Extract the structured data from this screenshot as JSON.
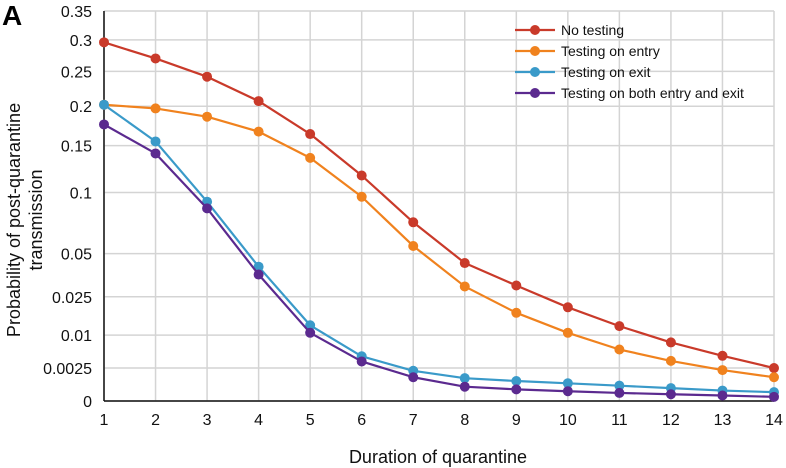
{
  "chart_data": {
    "type": "line",
    "panel_label": "A",
    "xlabel": "Duration of quarantine",
    "ylabel": [
      "Probability of post-quarantine",
      "transmission"
    ],
    "x": [
      1,
      2,
      3,
      4,
      5,
      6,
      7,
      8,
      9,
      10,
      11,
      12,
      13,
      14
    ],
    "xlim": [
      1,
      14
    ],
    "y_scale": "square-root",
    "ylim": [
      0,
      0.35
    ],
    "y_ticks": [
      0,
      0.0025,
      0.01,
      0.025,
      0.05,
      0.1,
      0.15,
      0.2,
      0.25,
      0.3,
      0.35
    ],
    "y_tick_labels": [
      "0",
      "0.0025",
      "0.01",
      "0.025",
      "0.05",
      "0.1",
      "0.15",
      "0.2",
      "0.25",
      "0.3",
      "0.35"
    ],
    "grid": true,
    "legend_position": "top-right",
    "series": [
      {
        "name": "No testing",
        "color": "#c93a2a",
        "values": [
          0.296,
          0.27,
          0.242,
          0.207,
          0.164,
          0.117,
          0.0735,
          0.0438,
          0.0307,
          0.0202,
          0.0129,
          0.0079,
          0.0047,
          0.0025
        ]
      },
      {
        "name": "Testing on entry",
        "color": "#f0821e",
        "values": [
          0.202,
          0.197,
          0.186,
          0.167,
          0.136,
          0.096,
          0.0553,
          0.0302,
          0.0179,
          0.0107,
          0.0061,
          0.0037,
          0.0022,
          0.0013
        ]
      },
      {
        "name": "Testing on exit",
        "color": "#3a9ac9",
        "values": [
          0.202,
          0.155,
          0.0914,
          0.0415,
          0.0132,
          0.0046,
          0.0021,
          0.0012,
          0.00092,
          0.00072,
          0.00054,
          0.00038,
          0.00025,
          0.00018
        ]
      },
      {
        "name": "Testing on both entry and exit",
        "color": "#5b2a8f",
        "values": [
          0.176,
          0.141,
          0.0854,
          0.0368,
          0.0107,
          0.0036,
          0.0013,
          0.00047,
          0.00031,
          0.00022,
          0.00015,
          0.000105,
          7e-05,
          4e-05
        ]
      }
    ]
  }
}
